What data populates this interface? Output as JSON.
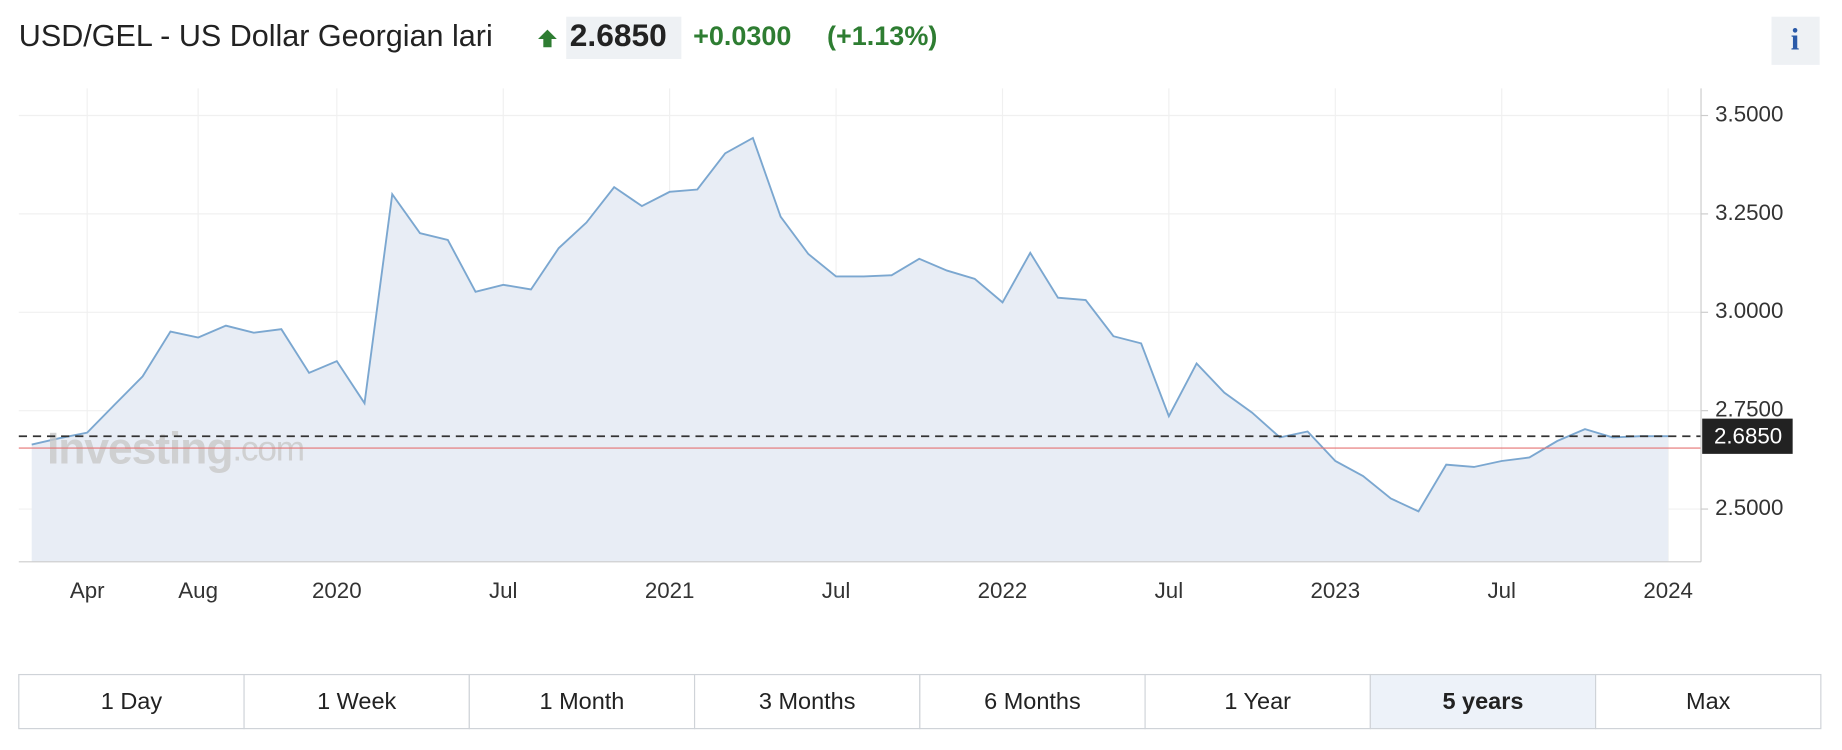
{
  "header": {
    "title": "USD/GEL - US Dollar Georgian lari",
    "price": "2.6850",
    "change": "+0.0300",
    "change_percent": "(+1.13%)",
    "info": "i"
  },
  "chart_data": {
    "type": "area",
    "categories": [
      null,
      null,
      "Apr",
      null,
      null,
      null,
      "Aug",
      null,
      null,
      null,
      null,
      "2020",
      null,
      null,
      null,
      null,
      null,
      "Jul",
      null,
      null,
      null,
      null,
      null,
      "2021",
      null,
      null,
      null,
      null,
      null,
      "Jul",
      null,
      null,
      null,
      null,
      null,
      "2022",
      null,
      null,
      null,
      null,
      null,
      "Jul",
      null,
      null,
      null,
      null,
      null,
      "2023",
      null,
      null,
      null,
      null,
      null,
      "Jul",
      null,
      null,
      null,
      null,
      null,
      "2024"
    ],
    "series": [
      {
        "name": "USD/GEL",
        "color": "#7ba7d0",
        "values": [
          2.664,
          2.68,
          2.694,
          2.766,
          2.837,
          2.951,
          2.936,
          2.966,
          2.948,
          2.957,
          2.846,
          2.876,
          2.769,
          3.3,
          3.201,
          3.184,
          3.052,
          3.07,
          3.058,
          3.163,
          3.228,
          3.318,
          3.27,
          3.306,
          3.312,
          3.404,
          3.443,
          3.243,
          3.148,
          3.091,
          3.091,
          3.094,
          3.136,
          3.106,
          3.085,
          3.025,
          3.151,
          3.037,
          3.031,
          2.939,
          2.921,
          2.736,
          2.87,
          2.796,
          2.745,
          2.682,
          2.697,
          2.622,
          2.584,
          2.527,
          2.494,
          2.613,
          2.607,
          2.622,
          2.631,
          2.673,
          2.703,
          2.682,
          2.685,
          2.685
        ]
      }
    ],
    "fill_color": "#e8edf5",
    "ylim": [
      2.366,
      3.569
    ],
    "yticks": [
      {
        "value": 2.5,
        "label": "2.5000"
      },
      {
        "value": 2.75,
        "label": "2.7500"
      },
      {
        "value": 3.0,
        "label": "3.0000"
      },
      {
        "value": 3.25,
        "label": "3.2500"
      },
      {
        "value": 3.5,
        "label": "3.5000"
      }
    ],
    "current_value": {
      "value": 2.685,
      "label": "2.6850"
    },
    "reference_line": 2.655,
    "grid": true,
    "watermark": [
      "Investing",
      ".com"
    ]
  },
  "ranges": {
    "labels": [
      "1 Day",
      "1 Week",
      "1 Month",
      "3 Months",
      "6 Months",
      "1 Year",
      "5 years",
      "Max"
    ],
    "selected": 6
  }
}
